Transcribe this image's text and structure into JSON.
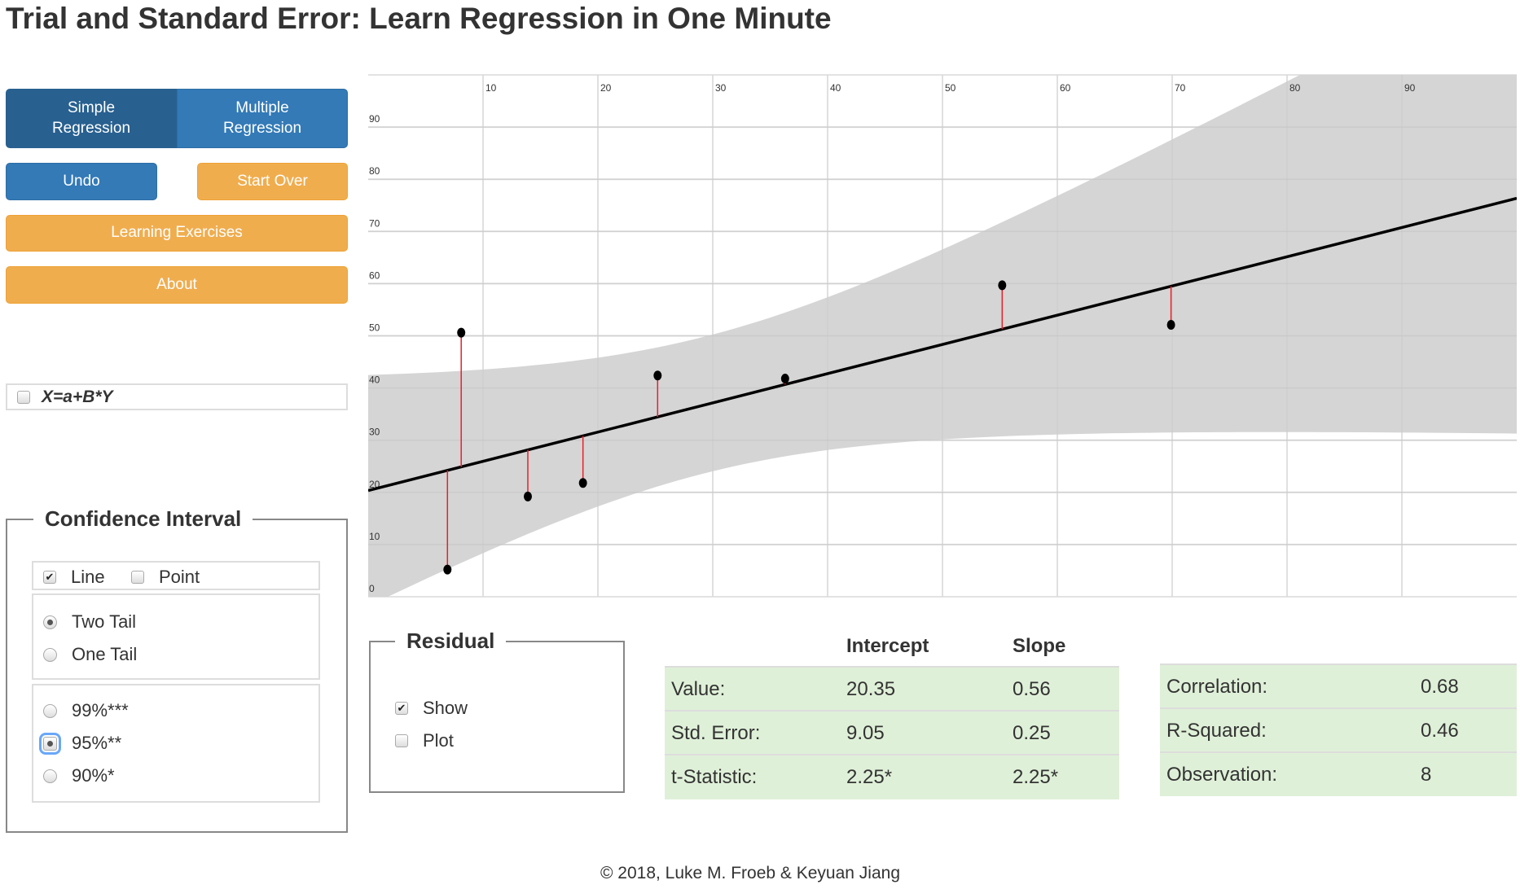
{
  "title": "Trial and Standard Error: Learn Regression in One Minute",
  "tabs": {
    "simple": "Simple Regression",
    "multiple": "Multiple Regression",
    "active": "simple"
  },
  "buttons": {
    "undo": "Undo",
    "start_over": "Start Over",
    "exercises": "Learning Exercises",
    "about": "About"
  },
  "reverse": {
    "label": "X=a+B*Y",
    "checked": false
  },
  "confidence": {
    "legend": "Confidence Interval",
    "line": {
      "label": "Line",
      "checked": true
    },
    "point": {
      "label": "Point",
      "checked": false
    },
    "two_tail": "Two Tail",
    "one_tail": "One Tail",
    "tail_selected": "Two Tail",
    "p99": "99%***",
    "p95": "95%**",
    "p90": "90%*",
    "level_selected": "95%**"
  },
  "residual": {
    "legend": "Residual",
    "show": {
      "label": "Show",
      "checked": true
    },
    "plot": {
      "label": "Plot",
      "checked": false
    }
  },
  "coef_table": {
    "headers": [
      "Intercept",
      "Slope"
    ],
    "rows": [
      {
        "label": "Value:",
        "intercept": "20.35",
        "slope": "0.56"
      },
      {
        "label": "Std. Error:",
        "intercept": "9.05",
        "slope": "0.25"
      },
      {
        "label": "t-Statistic:",
        "intercept": "2.25*",
        "slope": "2.25*"
      }
    ]
  },
  "fit_table": {
    "rows": [
      {
        "label": "Correlation:",
        "value": "0.68"
      },
      {
        "label": "R-Squared:",
        "value": "0.46"
      },
      {
        "label": "Observation:",
        "value": "8"
      }
    ]
  },
  "footer": "© 2018, Luke M. Froeb & Keyuan Jiang",
  "chart_data": {
    "type": "scatter",
    "xlim": [
      0,
      100
    ],
    "ylim": [
      0,
      100
    ],
    "x_ticks": [
      "10",
      "20",
      "30",
      "40",
      "50",
      "60",
      "70",
      "80",
      "90"
    ],
    "y_ticks": [
      "0",
      "10",
      "20",
      "30",
      "40",
      "50",
      "60",
      "70",
      "80",
      "90"
    ],
    "points": [
      {
        "x": 6.9,
        "y": 5.2
      },
      {
        "x": 8.1,
        "y": 50.6
      },
      {
        "x": 13.9,
        "y": 19.2
      },
      {
        "x": 18.7,
        "y": 21.8
      },
      {
        "x": 25.2,
        "y": 42.4
      },
      {
        "x": 36.3,
        "y": 41.8
      },
      {
        "x": 55.2,
        "y": 59.7
      },
      {
        "x": 69.9,
        "y": 52.1
      }
    ],
    "fit": {
      "intercept": 20.35,
      "slope": 0.56
    },
    "confidence_level": 0.95,
    "t_critical": 2.447,
    "colors": {
      "band": "#d3d3d3",
      "residual": "#e8202a",
      "line": "#000000",
      "point": "#000000"
    }
  }
}
